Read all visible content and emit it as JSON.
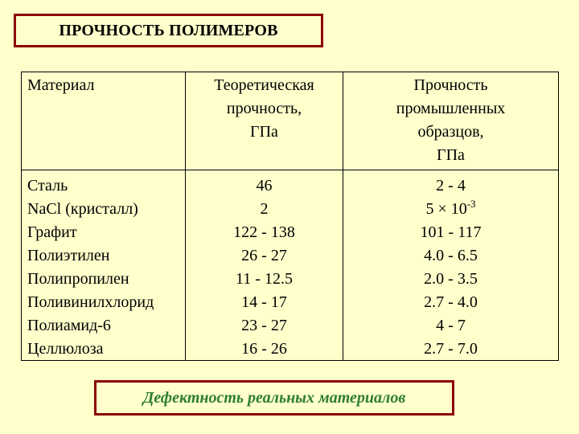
{
  "title": "ПРОЧНОСТЬ ПОЛИМЕРОВ",
  "table": {
    "headers": {
      "material": "Материал",
      "theoretical": [
        "Теоретическая",
        "прочность,",
        "ГПа"
      ],
      "industrial": [
        "Прочность",
        "промышленных",
        "образцов,",
        "ГПа"
      ]
    },
    "rows": [
      {
        "material": "Сталь",
        "theoretical": "46",
        "industrial": "2 - 4"
      },
      {
        "material": "NaCl (кристалл)",
        "theoretical": "2",
        "industrial_base": "5 × 10",
        "industrial_exp": "-3"
      },
      {
        "material": "Графит",
        "theoretical": "122 - 138",
        "industrial": "101 - 117"
      },
      {
        "material": "Полиэтилен",
        "theoretical": "26 - 27",
        "industrial": "4.0 - 6.5"
      },
      {
        "material": "Полипропилен",
        "theoretical": "11 - 12.5",
        "industrial": "2.0 - 3.5"
      },
      {
        "material": "Поливинилхлорид",
        "theoretical": "14 - 17",
        "industrial": "2.7 - 4.0"
      },
      {
        "material": "Полиамид-6",
        "theoretical": "23 - 27",
        "industrial": "4 - 7"
      },
      {
        "material": "Целлюлоза",
        "theoretical": "16 - 26",
        "industrial": "2.7 - 7.0"
      }
    ]
  },
  "footer": "Дефектность реальных материалов",
  "colors": {
    "background": "#FFFFCC",
    "frame": "#8B0000",
    "footer_text": "#2E7D32"
  }
}
